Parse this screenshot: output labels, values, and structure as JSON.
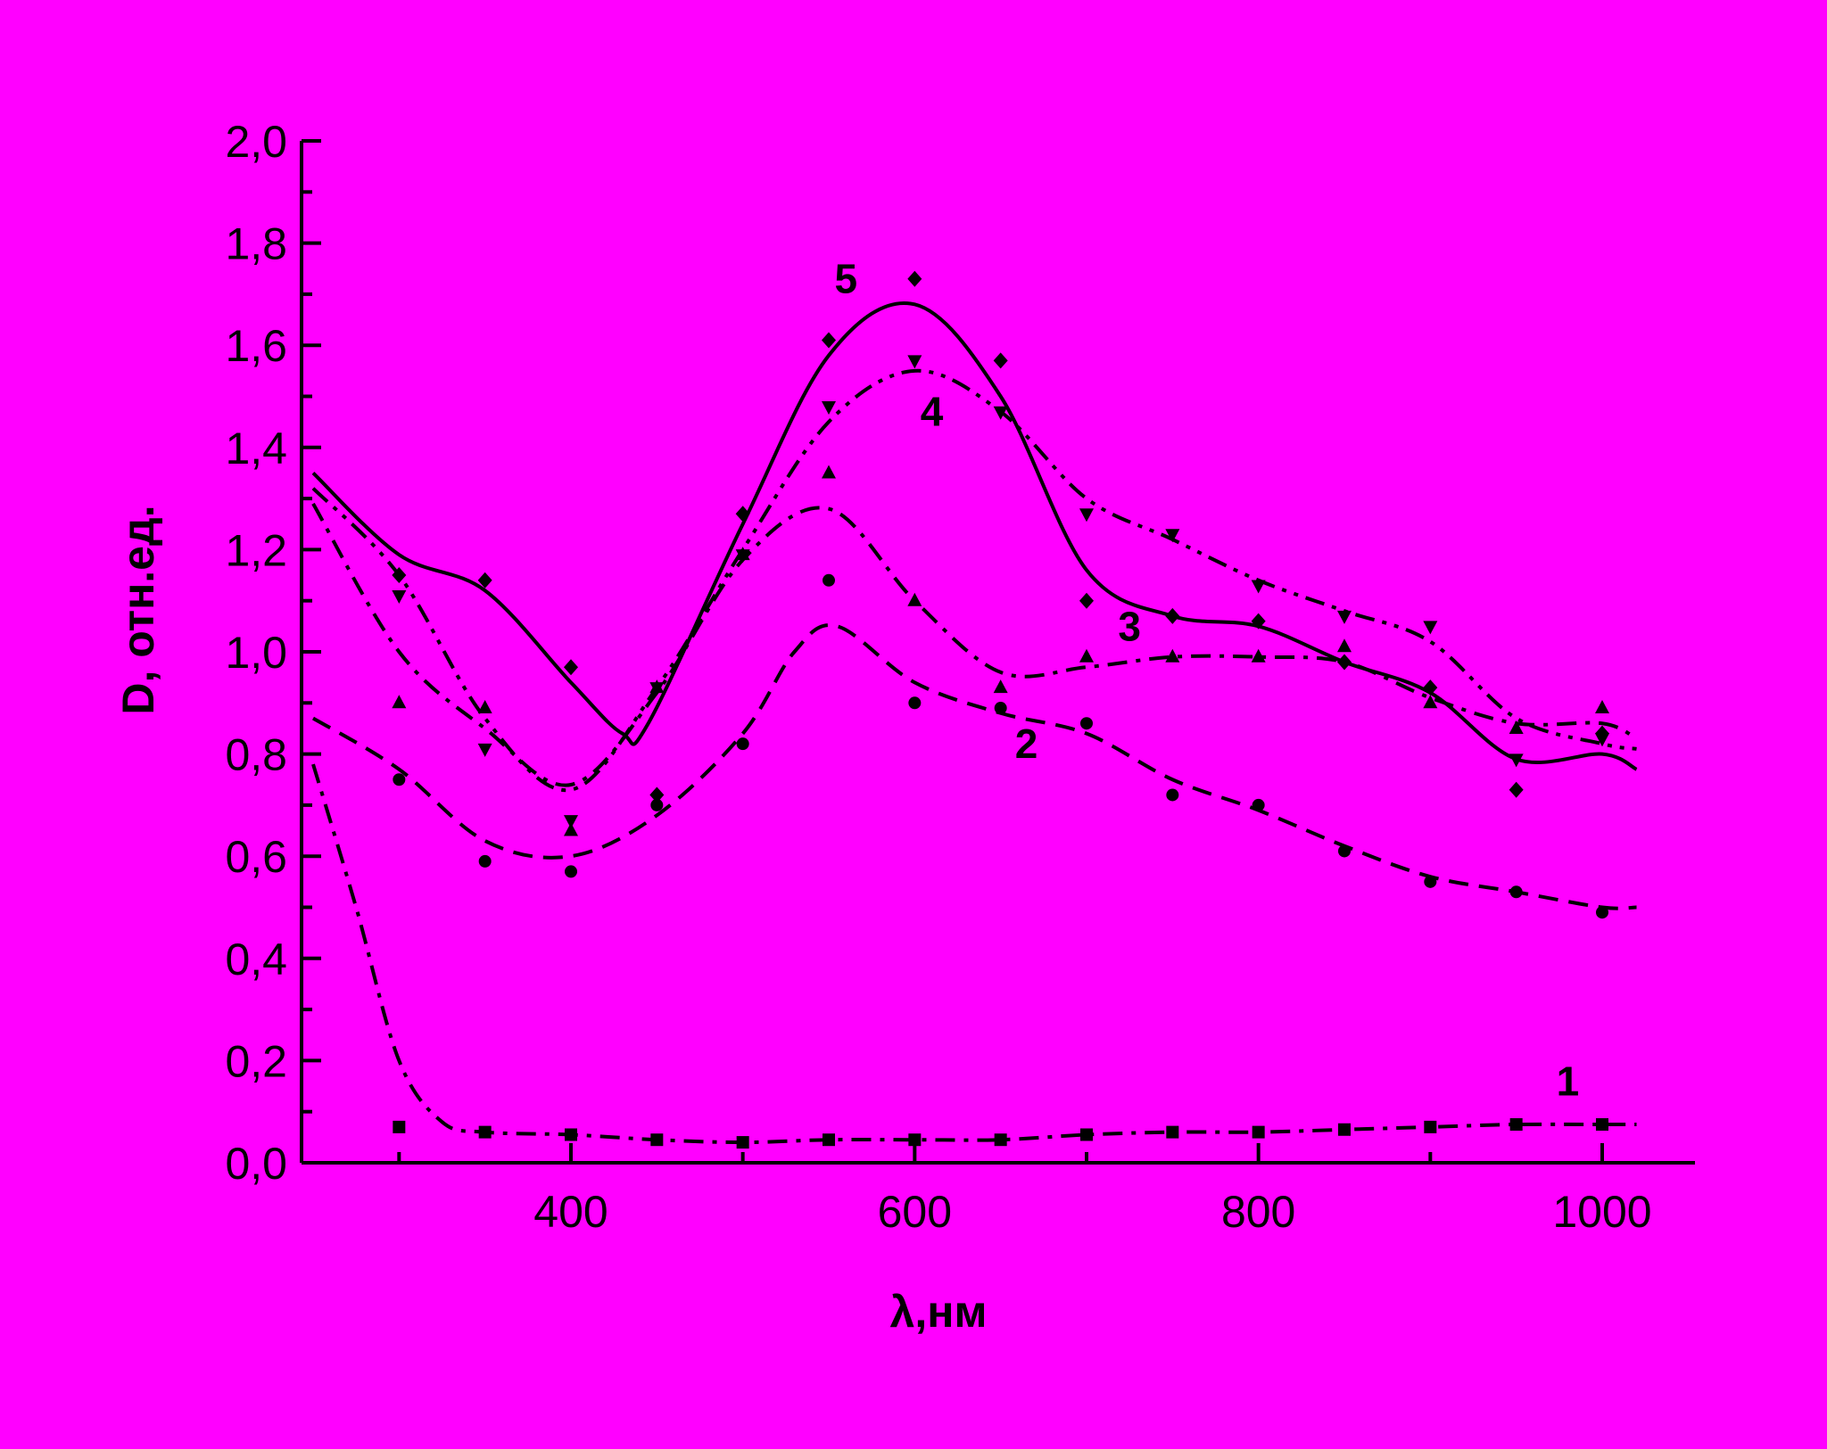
{
  "chart_data": {
    "type": "line",
    "title": "",
    "xlabel": "λ,нм",
    "ylabel": "D, отн.ед.",
    "xlim": [
      250,
      1020
    ],
    "ylim": [
      0,
      2.0
    ],
    "x_ticks": [
      400,
      600,
      800,
      1000
    ],
    "y_ticks": [
      "0,0",
      "0,2",
      "0,4",
      "0,6",
      "0,8",
      "1,0",
      "1,2",
      "1,4",
      "1,6",
      "1,8",
      "2,0"
    ],
    "grid": false,
    "background": "#ff00ff",
    "line_color": "#000000",
    "series": [
      {
        "name": "1",
        "marker": "square",
        "dash": "dash-dot",
        "x": [
          300,
          350,
          400,
          450,
          500,
          550,
          600,
          650,
          700,
          750,
          800,
          850,
          900,
          950,
          1000
        ],
        "y": [
          0.07,
          0.06,
          0.055,
          0.045,
          0.04,
          0.045,
          0.045,
          0.045,
          0.055,
          0.06,
          0.06,
          0.065,
          0.07,
          0.075,
          0.075
        ],
        "curve": [
          [
            250,
            0.78
          ],
          [
            275,
            0.5
          ],
          [
            300,
            0.2
          ],
          [
            325,
            0.08
          ],
          [
            350,
            0.06
          ],
          [
            400,
            0.055
          ],
          [
            450,
            0.045
          ],
          [
            500,
            0.04
          ],
          [
            550,
            0.045
          ],
          [
            600,
            0.045
          ],
          [
            650,
            0.045
          ],
          [
            700,
            0.055
          ],
          [
            750,
            0.06
          ],
          [
            800,
            0.06
          ],
          [
            850,
            0.065
          ],
          [
            900,
            0.07
          ],
          [
            950,
            0.075
          ],
          [
            1000,
            0.075
          ],
          [
            1020,
            0.075
          ]
        ]
      },
      {
        "name": "2",
        "marker": "circle",
        "dash": "dash",
        "x": [
          300,
          350,
          400,
          450,
          500,
          550,
          600,
          650,
          700,
          750,
          800,
          850,
          900,
          950,
          1000
        ],
        "y": [
          0.75,
          0.59,
          0.57,
          0.7,
          0.82,
          1.14,
          0.9,
          0.89,
          0.86,
          0.72,
          0.7,
          0.61,
          0.55,
          0.53,
          0.49
        ],
        "curve": [
          [
            250,
            0.87
          ],
          [
            300,
            0.77
          ],
          [
            350,
            0.63
          ],
          [
            400,
            0.6
          ],
          [
            450,
            0.68
          ],
          [
            500,
            0.84
          ],
          [
            530,
            1.0
          ],
          [
            555,
            1.05
          ],
          [
            600,
            0.94
          ],
          [
            650,
            0.88
          ],
          [
            700,
            0.84
          ],
          [
            750,
            0.75
          ],
          [
            800,
            0.69
          ],
          [
            850,
            0.62
          ],
          [
            900,
            0.56
          ],
          [
            950,
            0.53
          ],
          [
            1000,
            0.5
          ],
          [
            1020,
            0.5
          ]
        ]
      },
      {
        "name": "3",
        "marker": "triangle-up",
        "dash": "dash-dot",
        "x": [
          300,
          350,
          400,
          450,
          500,
          550,
          600,
          650,
          700,
          750,
          800,
          850,
          900,
          950,
          1000
        ],
        "y": [
          0.9,
          0.89,
          0.65,
          0.93,
          1.19,
          1.35,
          1.1,
          0.93,
          0.99,
          0.99,
          0.99,
          1.01,
          0.9,
          0.85,
          0.89
        ],
        "curve": [
          [
            250,
            1.29
          ],
          [
            300,
            1.0
          ],
          [
            350,
            0.85
          ],
          [
            400,
            0.74
          ],
          [
            450,
            0.92
          ],
          [
            500,
            1.18
          ],
          [
            550,
            1.28
          ],
          [
            600,
            1.1
          ],
          [
            650,
            0.96
          ],
          [
            700,
            0.97
          ],
          [
            750,
            0.99
          ],
          [
            800,
            0.99
          ],
          [
            850,
            0.98
          ],
          [
            900,
            0.91
          ],
          [
            950,
            0.86
          ],
          [
            1000,
            0.86
          ],
          [
            1020,
            0.83
          ]
        ]
      },
      {
        "name": "4",
        "marker": "triangle-down",
        "dash": "dash-dot-dot",
        "x": [
          300,
          350,
          400,
          450,
          500,
          550,
          600,
          650,
          700,
          750,
          800,
          850,
          900,
          950,
          1000
        ],
        "y": [
          1.11,
          0.81,
          0.67,
          0.93,
          1.19,
          1.48,
          1.57,
          1.47,
          1.27,
          1.23,
          1.13,
          1.07,
          1.05,
          0.79,
          0.83
        ],
        "curve": [
          [
            250,
            1.32
          ],
          [
            300,
            1.15
          ],
          [
            350,
            0.87
          ],
          [
            400,
            0.73
          ],
          [
            450,
            0.93
          ],
          [
            500,
            1.2
          ],
          [
            550,
            1.45
          ],
          [
            600,
            1.55
          ],
          [
            650,
            1.47
          ],
          [
            700,
            1.3
          ],
          [
            750,
            1.22
          ],
          [
            800,
            1.14
          ],
          [
            850,
            1.08
          ],
          [
            900,
            1.02
          ],
          [
            950,
            0.87
          ],
          [
            1000,
            0.82
          ],
          [
            1020,
            0.81
          ]
        ]
      },
      {
        "name": "5",
        "marker": "diamond",
        "dash": "solid",
        "x": [
          300,
          350,
          400,
          450,
          500,
          550,
          600,
          650,
          700,
          750,
          800,
          850,
          900,
          950,
          1000
        ],
        "y": [
          1.15,
          1.14,
          0.97,
          0.72,
          1.27,
          1.61,
          1.73,
          1.57,
          1.1,
          1.07,
          1.06,
          0.98,
          0.93,
          0.73,
          0.84
        ],
        "curve": [
          [
            250,
            1.35
          ],
          [
            300,
            1.19
          ],
          [
            350,
            1.12
          ],
          [
            400,
            0.94
          ],
          [
            430,
            0.84
          ],
          [
            445,
            0.86
          ],
          [
            500,
            1.25
          ],
          [
            550,
            1.58
          ],
          [
            600,
            1.68
          ],
          [
            650,
            1.5
          ],
          [
            700,
            1.16
          ],
          [
            750,
            1.07
          ],
          [
            800,
            1.05
          ],
          [
            850,
            0.98
          ],
          [
            900,
            0.92
          ],
          [
            950,
            0.79
          ],
          [
            1000,
            0.8
          ],
          [
            1020,
            0.77
          ]
        ]
      }
    ],
    "series_labels": [
      {
        "text": "1",
        "x": 980,
        "y": 0.16
      },
      {
        "text": "2",
        "x": 665,
        "y": 0.82
      },
      {
        "text": "3",
        "x": 725,
        "y": 1.05
      },
      {
        "text": "4",
        "x": 610,
        "y": 1.47
      },
      {
        "text": "5",
        "x": 560,
        "y": 1.73
      }
    ]
  }
}
